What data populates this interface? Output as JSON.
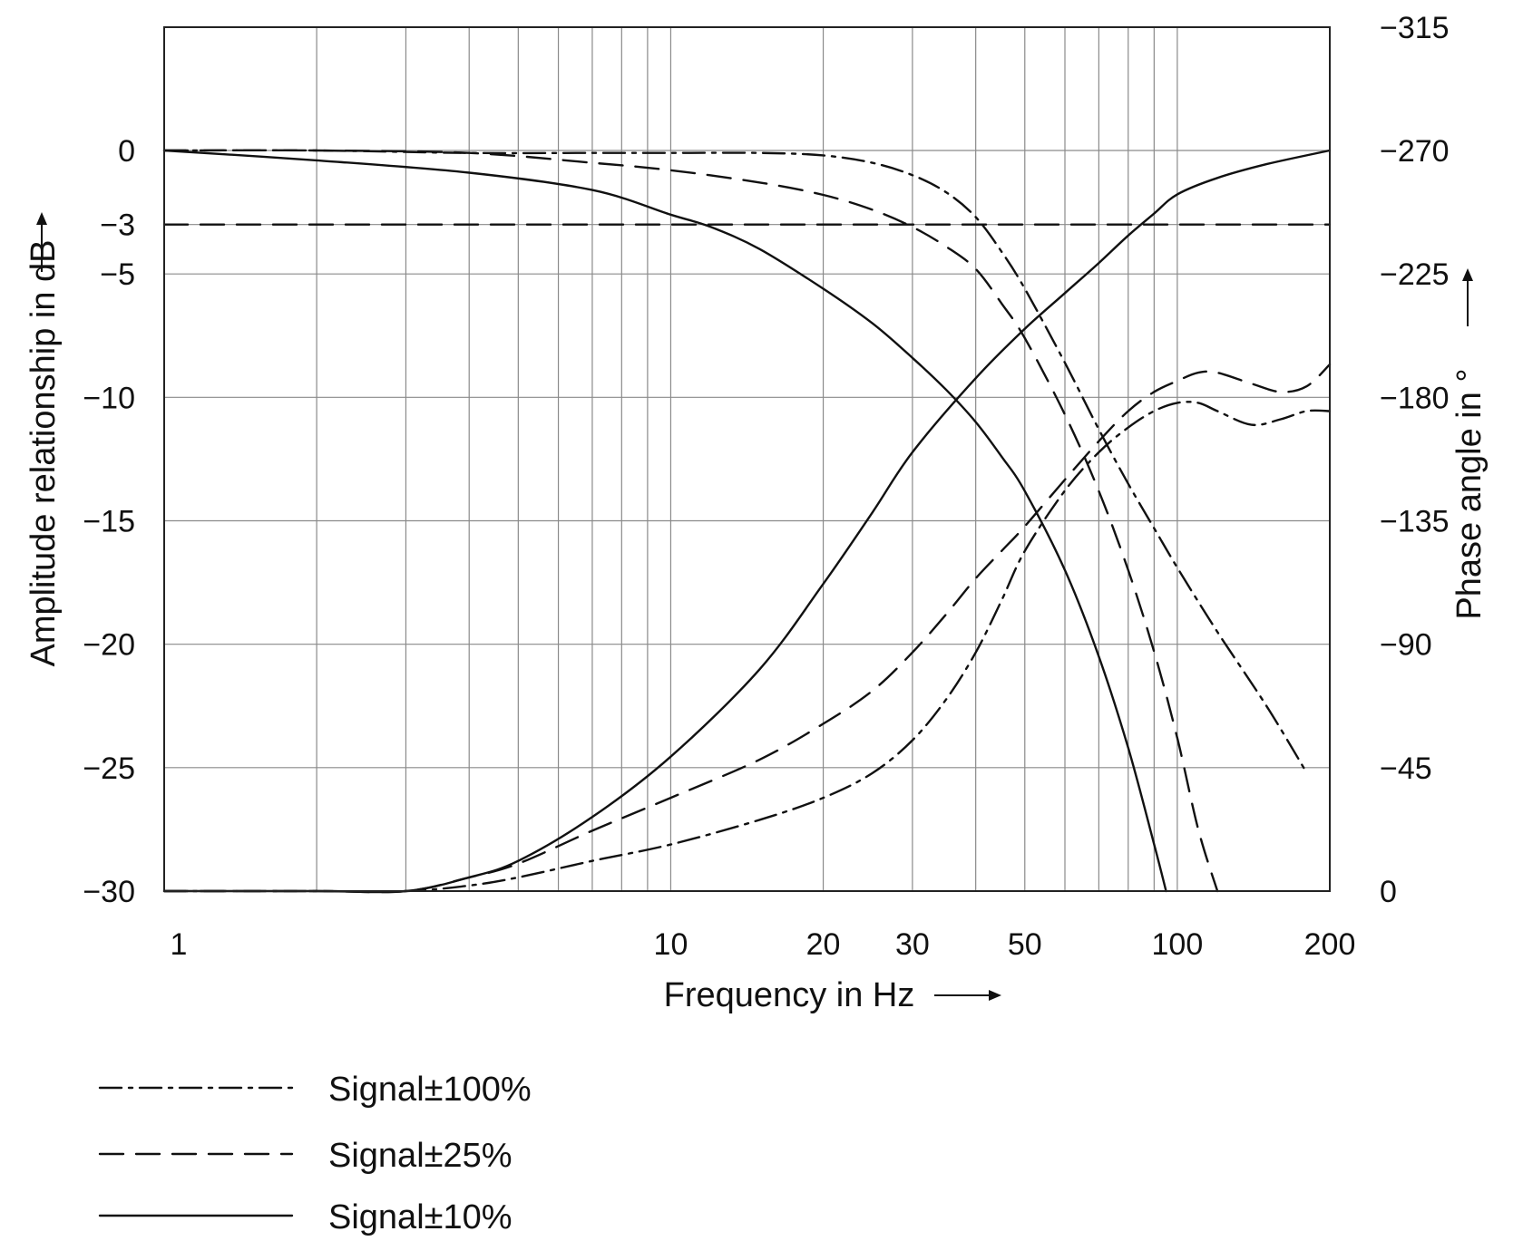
{
  "chart_data": {
    "type": "line",
    "xlabel": "Frequency in Hz",
    "ylabel": "Amplitude relationship in dB",
    "y2label": "Phase angle in °",
    "x_scale": "log",
    "xlim": [
      1,
      200
    ],
    "ylim": [
      -30,
      5
    ],
    "y2lim": [
      0,
      315
    ],
    "x_ticks": [
      1,
      10,
      20,
      30,
      50,
      100,
      200
    ],
    "x_gridlines": [
      1,
      2,
      3,
      4,
      5,
      6,
      7,
      8,
      9,
      10,
      20,
      30,
      40,
      50,
      60,
      70,
      80,
      90,
      100,
      200
    ],
    "y_ticks": [
      0,
      -3,
      -5,
      -10,
      -15,
      -20,
      -25,
      -30
    ],
    "y2_ticks": [
      -315,
      -270,
      -225,
      -180,
      -135,
      -90,
      -45,
      0
    ],
    "grid": true,
    "reference_line": {
      "y": -3,
      "style": "dashed"
    },
    "legend_position": "bottom-left",
    "legend": [
      {
        "label": "Signal±100%",
        "style": "dash-dot"
      },
      {
        "label": "Signal±25%",
        "style": "dashed"
      },
      {
        "label": "Signal±10%",
        "style": "solid"
      }
    ],
    "series": [
      {
        "name": "Signal±100%",
        "style": "dash-dot",
        "quantity": "amplitude",
        "axis": "left",
        "x": [
          1,
          2,
          4,
          7,
          10,
          15,
          20,
          25,
          30,
          35,
          40,
          45,
          50,
          60,
          70,
          80,
          90,
          100,
          120,
          150,
          180
        ],
        "y": [
          0,
          0,
          -0.1,
          -0.1,
          -0.1,
          -0.1,
          -0.2,
          -0.5,
          -1.0,
          -1.7,
          -2.7,
          -4.1,
          -5.6,
          -8.6,
          -11.3,
          -13.5,
          -15.3,
          -16.9,
          -19.5,
          -22.5,
          -25.2
        ]
      },
      {
        "name": "Signal±25%",
        "style": "dashed",
        "quantity": "amplitude",
        "axis": "left",
        "x": [
          1,
          2,
          4,
          7,
          10,
          15,
          20,
          25,
          30,
          35,
          40,
          45,
          50,
          60,
          70,
          80,
          90,
          100,
          110,
          120
        ],
        "y": [
          0,
          0,
          -0.1,
          -0.5,
          -0.8,
          -1.3,
          -1.8,
          -2.4,
          -3.1,
          -3.9,
          -4.8,
          -6.2,
          -7.6,
          -10.7,
          -13.8,
          -17.0,
          -20.3,
          -23.8,
          -27.5,
          -30.0
        ]
      },
      {
        "name": "Signal±10%",
        "style": "solid",
        "quantity": "amplitude",
        "axis": "left",
        "x": [
          1,
          2,
          4,
          7,
          10,
          12,
          15,
          20,
          25,
          30,
          35,
          40,
          45,
          50,
          60,
          70,
          80,
          90,
          95
        ],
        "y": [
          0,
          -0.4,
          -0.9,
          -1.6,
          -2.6,
          -3.1,
          -4.0,
          -5.6,
          -7.0,
          -8.4,
          -9.7,
          -11.0,
          -12.4,
          -13.8,
          -17.0,
          -20.5,
          -24.2,
          -28.1,
          -30.0
        ]
      },
      {
        "name": "Signal±100%",
        "style": "dash-dot",
        "quantity": "phase",
        "axis": "right",
        "x": [
          1,
          2,
          3,
          4,
          5,
          7,
          10,
          15,
          20,
          25,
          30,
          35,
          40,
          45,
          50,
          60,
          70,
          80,
          90,
          100,
          110,
          120,
          140,
          160,
          180,
          200
        ],
        "y": [
          0,
          0,
          0,
          2,
          5,
          11,
          17,
          26,
          34,
          43,
          55,
          70,
          87,
          106,
          124,
          146,
          160,
          169,
          175,
          178,
          178,
          175,
          170,
          172,
          175,
          175
        ]
      },
      {
        "name": "Signal±25%",
        "style": "dashed",
        "quantity": "phase",
        "axis": "right",
        "x": [
          1,
          2,
          3,
          4,
          5,
          7,
          10,
          15,
          20,
          25,
          30,
          35,
          40,
          45,
          50,
          60,
          70,
          80,
          90,
          100,
          110,
          120,
          140,
          160,
          180,
          200
        ],
        "y": [
          0,
          0,
          0,
          5,
          10,
          22,
          34,
          48,
          61,
          73,
          87,
          101,
          114,
          124,
          133,
          150,
          164,
          175,
          182,
          186,
          189,
          189,
          185,
          182,
          184,
          192
        ]
      },
      {
        "name": "Signal±10%",
        "style": "solid",
        "quantity": "phase",
        "axis": "right",
        "x": [
          1,
          2,
          3,
          4,
          5,
          7,
          10,
          15,
          20,
          25,
          30,
          40,
          50,
          60,
          70,
          80,
          90,
          100,
          120,
          150,
          200
        ],
        "y": [
          0,
          0,
          0,
          5,
          11,
          27,
          49,
          81,
          112,
          138,
          160,
          187,
          205,
          218,
          229,
          239,
          247,
          254,
          260,
          265,
          270
        ]
      }
    ]
  }
}
